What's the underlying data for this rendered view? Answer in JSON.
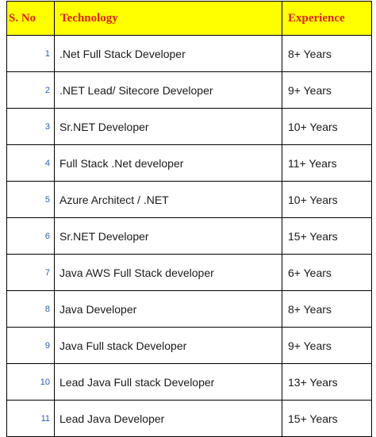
{
  "table": {
    "headers": {
      "sno": "S. No",
      "technology": "Technology",
      "experience": "Experience"
    },
    "header_bg": "#ffff00",
    "header_text_color": "#e0221a",
    "number_color": "#2a5db0",
    "rows": [
      {
        "sno": "1",
        "technology": ".Net Full Stack Developer",
        "experience": "8+ Years"
      },
      {
        "sno": "2",
        "technology": ".NET Lead/ Sitecore Developer",
        "experience": "9+ Years"
      },
      {
        "sno": "3",
        "technology": "Sr.NET Developer",
        "experience": "10+ Years"
      },
      {
        "sno": "4",
        "technology": "Full Stack .Net developer",
        "experience": "11+ Years"
      },
      {
        "sno": "5",
        "technology": "Azure Architect / .NET",
        "experience": "10+ Years"
      },
      {
        "sno": "6",
        "technology": "Sr.NET Developer",
        "experience": "15+ Years"
      },
      {
        "sno": "7",
        "technology": "Java AWS Full Stack developer",
        "experience": "6+ Years"
      },
      {
        "sno": "8",
        "technology": "Java Developer",
        "experience": "8+ Years"
      },
      {
        "sno": "9",
        "technology": "Java Full stack Developer",
        "experience": "9+ Years"
      },
      {
        "sno": "10",
        "technology": "Lead Java Full stack Developer",
        "experience": "13+ Years"
      },
      {
        "sno": "11",
        "technology": "Lead Java Developer",
        "experience": "15+ Years"
      }
    ]
  }
}
